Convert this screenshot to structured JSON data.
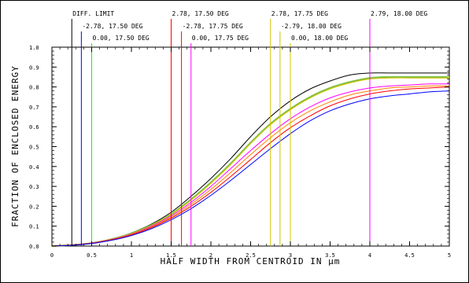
{
  "chart_data": {
    "type": "line",
    "title": "",
    "xlabel": "HALF WIDTH FROM CENTROID IN µm",
    "ylabel": "FRACTION OF ENCLOSED ENERGY",
    "xlim": [
      0,
      5
    ],
    "ylim": [
      0,
      1.0
    ],
    "x_ticks": [
      "0",
      "0.5",
      "1",
      "1.5",
      "2",
      "2.5",
      "3",
      "3.5",
      "4",
      "4.5",
      "5"
    ],
    "y_ticks": [
      "0.0",
      "0.1",
      "0.2",
      "0.3",
      "0.4",
      "0.5",
      "0.6",
      "0.7",
      "0.8",
      "0.9",
      "1.0"
    ],
    "grid": false,
    "x": [
      0,
      0.25,
      0.5,
      0.75,
      1,
      1.25,
      1.5,
      1.75,
      2,
      2.25,
      2.5,
      2.75,
      3,
      3.25,
      3.5,
      3.75,
      4,
      4.25,
      4.5,
      4.75,
      5
    ],
    "series": [
      {
        "color": "#000000",
        "values": [
          0,
          0.005,
          0.016,
          0.036,
          0.066,
          0.11,
          0.17,
          0.25,
          0.34,
          0.44,
          0.55,
          0.65,
          0.73,
          0.79,
          0.83,
          0.86,
          0.87,
          0.87,
          0.87,
          0.87,
          0.87
        ]
      },
      {
        "color": "#7fbf3f",
        "values": [
          0,
          0.005,
          0.015,
          0.034,
          0.063,
          0.105,
          0.16,
          0.235,
          0.32,
          0.415,
          0.52,
          0.615,
          0.69,
          0.75,
          0.795,
          0.825,
          0.845,
          0.85,
          0.85,
          0.85,
          0.85
        ]
      },
      {
        "color": "#d4c400",
        "values": [
          0,
          0.005,
          0.015,
          0.034,
          0.062,
          0.103,
          0.158,
          0.23,
          0.315,
          0.41,
          0.515,
          0.61,
          0.685,
          0.745,
          0.79,
          0.82,
          0.84,
          0.845,
          0.845,
          0.845,
          0.845
        ]
      },
      {
        "color": "#ff00ff",
        "values": [
          0,
          0.005,
          0.015,
          0.033,
          0.06,
          0.1,
          0.152,
          0.22,
          0.3,
          0.39,
          0.48,
          0.565,
          0.64,
          0.7,
          0.745,
          0.775,
          0.795,
          0.805,
          0.81,
          0.815,
          0.815
        ]
      },
      {
        "color": "#ff8000",
        "values": [
          0,
          0.005,
          0.014,
          0.032,
          0.058,
          0.096,
          0.146,
          0.21,
          0.285,
          0.37,
          0.46,
          0.545,
          0.62,
          0.68,
          0.725,
          0.76,
          0.78,
          0.795,
          0.8,
          0.805,
          0.805
        ]
      },
      {
        "color": "#ff0000",
        "values": [
          0,
          0.005,
          0.014,
          0.031,
          0.056,
          0.092,
          0.14,
          0.2,
          0.27,
          0.35,
          0.435,
          0.52,
          0.595,
          0.655,
          0.705,
          0.74,
          0.765,
          0.78,
          0.79,
          0.795,
          0.8
        ]
      },
      {
        "color": "#0000ff",
        "values": [
          0,
          0.004,
          0.013,
          0.029,
          0.053,
          0.087,
          0.132,
          0.188,
          0.255,
          0.33,
          0.41,
          0.49,
          0.565,
          0.63,
          0.68,
          0.715,
          0.74,
          0.755,
          0.765,
          0.775,
          0.78
        ]
      }
    ],
    "markers": [
      {
        "x": 0.25,
        "color": "#000000",
        "label": "DIFF. LIMIT",
        "row": 0
      },
      {
        "x": 0.37,
        "color": "#0000ff",
        "label": "-2.78, 17.50 DEG",
        "row": 1
      },
      {
        "x": 0.5,
        "color": "#00ff00",
        "label": "0.00, 17.50 DEG",
        "row": 2
      },
      {
        "x": 1.5,
        "color": "#ff0000",
        "label": "2.78, 17.50 DEG",
        "row": 0
      },
      {
        "x": 1.63,
        "color": "#ff0000",
        "label": "-2.78, 17.75 DEG",
        "row": 1
      },
      {
        "x": 1.75,
        "color": "#ff00ff",
        "label": "0.00, 17.75 DEG",
        "row": 2
      },
      {
        "x": 2.75,
        "color": "#d4c400",
        "label": "2.78, 17.75 DEG",
        "row": 0
      },
      {
        "x": 2.87,
        "color": "#d4c400",
        "label": "-2.79, 18.00 DEG",
        "row": 1
      },
      {
        "x": 3.0,
        "color": "#d4c400",
        "label": "0.00, 18.00 DEG",
        "row": 2
      },
      {
        "x": 4.0,
        "color": "#ff00ff",
        "label": "2.79, 18.00 DEG",
        "row": 0
      }
    ]
  }
}
